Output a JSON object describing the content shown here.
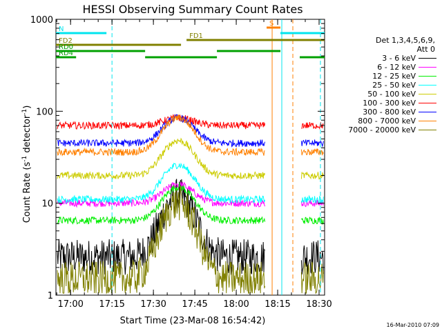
{
  "chart_data": {
    "type": "line",
    "title": "HESSI Observing Summary Count Rates",
    "xlabel": "Start Time (23-Mar-08 16:54:42)",
    "ylabel_prefix": "Count Rate (s",
    "ylabel_sup": "-1",
    "ylabel_mid": " detector",
    "ylabel_sup2": "-1",
    "ylabel_suffix": ")",
    "y_scale": "log",
    "ylim": [
      1,
      1000
    ],
    "xlim": [
      "16:54:42",
      "18:32:00"
    ],
    "y_ticks": [
      {
        "v": 1,
        "label": "1"
      },
      {
        "v": 10,
        "label": "10"
      },
      {
        "v": 100,
        "label": "100"
      },
      {
        "v": 1000,
        "label": "1000"
      }
    ],
    "x_ticks": [
      {
        "t": "17:00",
        "label": "17:00"
      },
      {
        "t": "17:15",
        "label": "17:15"
      },
      {
        "t": "17:30",
        "label": "17:30"
      },
      {
        "t": "17:45",
        "label": "17:45"
      },
      {
        "t": "18:00",
        "label": "18:00"
      },
      {
        "t": "18:15",
        "label": "18:15"
      },
      {
        "t": "18:30",
        "label": "18:30"
      }
    ],
    "legend": {
      "position": "right",
      "title_line1": "Det 1,3,4,5,6,9,",
      "title_line2": "Att 0"
    },
    "series": [
      {
        "name": "3 - 6 keV",
        "color": "#000000",
        "base": 2.6,
        "peak": 12
      },
      {
        "name": "6 - 12 keV",
        "color": "#ff00ff",
        "base": 10,
        "peak": 16
      },
      {
        "name": "12 - 25 keV",
        "color": "#00ee00",
        "base": 6.5,
        "peak": 15
      },
      {
        "name": "25 - 50 keV",
        "color": "#00ffff",
        "base": 11,
        "peak": 26
      },
      {
        "name": "50 - 100 keV",
        "color": "#cccc00",
        "base": 20,
        "peak": 48
      },
      {
        "name": "100 - 300 keV",
        "color": "#ff0000",
        "base": 70,
        "peak": 85
      },
      {
        "name": "300 - 800 keV",
        "color": "#0000ff",
        "base": 45,
        "peak": 85
      },
      {
        "name": "800 - 7000 keV",
        "color": "#ff8000",
        "base": 36,
        "peak": 85
      },
      {
        "name": "7000 - 20000 keV",
        "color": "#808000",
        "base": 1.5,
        "peak": 10
      }
    ],
    "data_gaps": [
      {
        "start": "18:10:30",
        "end": "18:23:30"
      }
    ],
    "flag_bars": [
      {
        "label": "N",
        "color": "#00e5ee",
        "segments": [
          [
            "16:54:42",
            "17:13:00"
          ],
          [
            "18:16:00",
            "18:32:00"
          ]
        ]
      },
      {
        "label": "S",
        "color": "#ff8000",
        "segments": [
          [
            "18:11:00",
            "18:16:00"
          ]
        ]
      },
      {
        "label": "FD1",
        "color": "#808000",
        "segments": [
          [
            "17:42:00",
            "18:32:00"
          ]
        ]
      },
      {
        "label": "FD2",
        "color": "#808000",
        "segments": [
          [
            "16:54:42",
            "17:40:00"
          ]
        ]
      },
      {
        "label": "RD0",
        "color": "#00a000",
        "segments": [
          [
            "16:54:42",
            "17:27:00"
          ],
          [
            "17:53:00",
            "18:16:00"
          ]
        ]
      },
      {
        "label": "RD4",
        "color": "#00a000",
        "segments": [
          [
            "16:54:42",
            "17:02:00"
          ],
          [
            "17:27:00",
            "17:53:00"
          ],
          [
            "18:23:00",
            "18:32:00"
          ]
        ]
      }
    ],
    "vertical_markers": [
      {
        "t": "17:15:00",
        "color": "#00e5ee",
        "style": "dashed"
      },
      {
        "t": "18:13:00",
        "color": "#ff8000",
        "style": "solid"
      },
      {
        "t": "18:16:30",
        "color": "#00e5ee",
        "style": "solid"
      },
      {
        "t": "18:20:30",
        "color": "#ff8000",
        "style": "dashed"
      },
      {
        "t": "18:30:30",
        "color": "#00e5ee",
        "style": "dashed"
      }
    ],
    "grid": false
  },
  "footer": {
    "timestamp": "16-Mar-2010 07:09"
  }
}
